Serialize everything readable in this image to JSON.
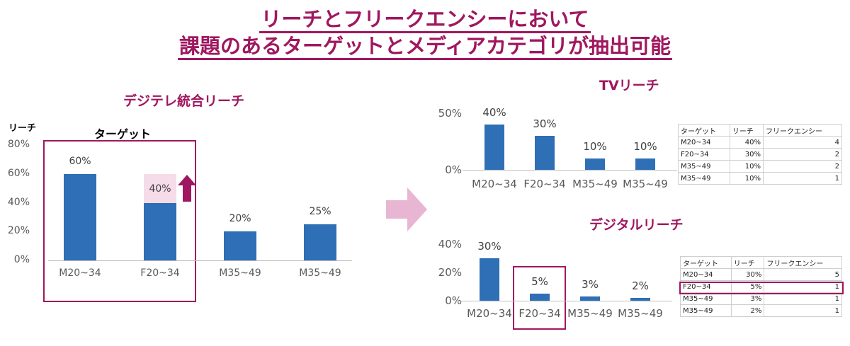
{
  "header": {
    "line1": "リーチとフリークエンシーにおいて",
    "line2": "課題のあるターゲットとメディアカテゴリが抽出可能"
  },
  "colors": {
    "accent": "#a0175f",
    "bar": "#2e6fb5",
    "highlight_fill": "#f6dbe8",
    "arrow": "#e8b5d2"
  },
  "left_chart": {
    "title": "デジテレ統合リーチ",
    "ylabel": "リーチ",
    "box_label": "ターゲット",
    "up_arrow_icon": "up-arrow-icon",
    "highlight_value": 40,
    "highlight_label": "40%"
  },
  "tv_chart": {
    "title": "TVリーチ"
  },
  "digital_chart": {
    "title": "デジタルリーチ"
  },
  "middle_arrow_icon": "right-arrow-icon",
  "tv_table": {
    "headers": [
      "ターゲット",
      "リーチ",
      "フリークエンシー"
    ],
    "rows": [
      [
        "M20~34",
        "40%",
        "4"
      ],
      [
        "F20~34",
        "30%",
        "2"
      ],
      [
        "M35~49",
        "10%",
        "2"
      ],
      [
        "M35~49",
        "10%",
        "1"
      ]
    ]
  },
  "digital_table": {
    "headers": [
      "ターゲット",
      "リーチ",
      "フリークエンシー"
    ],
    "rows": [
      [
        "M20~34",
        "30%",
        "5"
      ],
      [
        "F20~34",
        "5%",
        "1"
      ],
      [
        "M35~49",
        "3%",
        "1"
      ],
      [
        "M35~49",
        "2%",
        "1"
      ]
    ],
    "highlighted_row": 1
  },
  "chart_data": [
    {
      "type": "bar",
      "title": "デジテレ統合リーチ",
      "ylabel": "リーチ",
      "categories": [
        "M20~34",
        "F20~34",
        "M35~49",
        "M35~49"
      ],
      "values": [
        60,
        40,
        20,
        25
      ],
      "labels": [
        "60%",
        "40%",
        "20%",
        "25%"
      ],
      "yticks": [
        "0%",
        "20%",
        "40%",
        "60%",
        "80%"
      ],
      "ylim": [
        0,
        80
      ],
      "grid": false
    },
    {
      "type": "bar",
      "title": "TVリーチ",
      "categories": [
        "M20~34",
        "F20~34",
        "M35~49",
        "M35~49"
      ],
      "values": [
        40,
        30,
        10,
        10
      ],
      "labels": [
        "40%",
        "30%",
        "10%",
        "10%"
      ],
      "yticks": [
        "0%",
        "50%"
      ],
      "ylim": [
        0,
        50
      ],
      "grid": false
    },
    {
      "type": "bar",
      "title": "デジタルリーチ",
      "categories": [
        "M20~34",
        "F20~34",
        "M35~49",
        "M35~49"
      ],
      "values": [
        30,
        5,
        3,
        2
      ],
      "labels": [
        "30%",
        "5%",
        "3%",
        "2%"
      ],
      "yticks": [
        "0%",
        "20%",
        "40%"
      ],
      "ylim": [
        0,
        40
      ],
      "grid": false
    }
  ]
}
